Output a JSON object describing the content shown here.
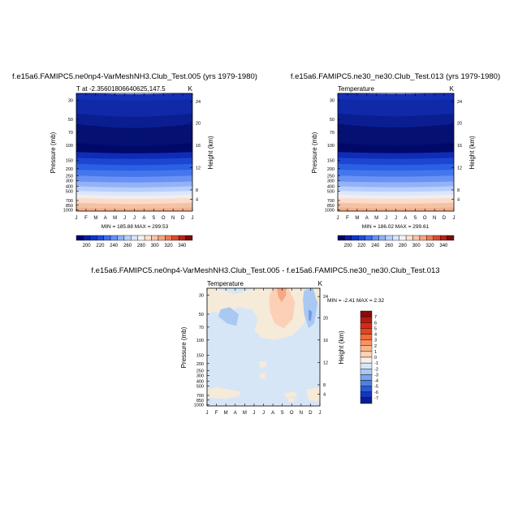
{
  "chart_data": [
    {
      "type": "heatmap",
      "title": "f.e15a6.FAMIPC5.ne0np4-VarMeshNH3.Club_Test.005 (yrs 1979-1980)",
      "subtitle_left": "T at -2.35601806640625,147.5",
      "subtitle_right": "K",
      "xlabel": "",
      "ylabel": "Pressure (mb)",
      "ylabel_right": "Height (km)",
      "x": [
        "J",
        "F",
        "M",
        "A",
        "M",
        "J",
        "J",
        "A",
        "S",
        "O",
        "N",
        "D",
        "J"
      ],
      "y_ticks": [
        "30",
        "50",
        "70",
        "100",
        "150",
        "200",
        "250",
        "300",
        "400",
        "500",
        "700",
        "850",
        "1000"
      ],
      "y_right_ticks": [
        "24",
        "20",
        "16",
        "12",
        "8",
        "4"
      ],
      "stats": "MIN = 185.88  MAX = 299.53",
      "legend_levels": [
        "200",
        "220",
        "240",
        "260",
        "280",
        "300",
        "320",
        "340"
      ],
      "contour_levels": [
        190,
        200,
        210,
        220,
        230,
        240,
        250,
        260,
        270,
        280,
        290
      ],
      "colorbar_colors": [
        "#00006b",
        "#0a1e9e",
        "#0f35c8",
        "#1a4ee0",
        "#3c6cf0",
        "#6690f7",
        "#8fb1fa",
        "#b7cffc",
        "#d8e6fd",
        "#f3f3f3",
        "#fde0d0",
        "#f9c3a7",
        "#f4a582",
        "#ec7a54",
        "#db4b2e",
        "#b8241a",
        "#7a0d0d"
      ]
    },
    {
      "type": "heatmap",
      "title": "f.e15a6.FAMIPC5.ne30_ne30.Club_Test.013 (yrs 1979-1980)",
      "subtitle_left": "Temperature",
      "subtitle_right": "K",
      "xlabel": "",
      "ylabel": "Pressure (mb)",
      "ylabel_right": "Height (km)",
      "x": [
        "J",
        "F",
        "M",
        "A",
        "M",
        "J",
        "J",
        "A",
        "S",
        "O",
        "N",
        "D",
        "J"
      ],
      "y_ticks": [
        "30",
        "50",
        "70",
        "100",
        "150",
        "200",
        "250",
        "300",
        "400",
        "500",
        "700",
        "850",
        "1000"
      ],
      "y_right_ticks": [
        "24",
        "20",
        "16",
        "12",
        "8",
        "4"
      ],
      "stats": "MIN = 186.02  MAX = 299.61",
      "legend_levels": [
        "200",
        "220",
        "240",
        "260",
        "280",
        "300",
        "320",
        "340"
      ],
      "contour_levels": [
        190,
        200,
        210,
        220,
        230,
        240,
        250,
        260,
        270,
        280,
        290
      ]
    },
    {
      "type": "heatmap",
      "title": "f.e15a6.FAMIPC5.ne0np4-VarMeshNH3.Club_Test.005 - f.e15a6.FAMIPC5.ne30_ne30.Club_Test.013",
      "subtitle_left": "Temperature",
      "subtitle_right": "K",
      "xlabel": "",
      "ylabel": "Pressure (mb)",
      "ylabel_right": "Height (km)",
      "x": [
        "J",
        "F",
        "M",
        "A",
        "M",
        "J",
        "J",
        "A",
        "S",
        "O",
        "N",
        "D",
        "J"
      ],
      "y_ticks": [
        "30",
        "50",
        "70",
        "100",
        "150",
        "200",
        "250",
        "300",
        "400",
        "500",
        "700",
        "850",
        "1000"
      ],
      "y_right_ticks": [
        "24",
        "20",
        "16",
        "12",
        "8",
        "4"
      ],
      "stats": "MIN =  -2.41  MAX =   2.32",
      "legend_levels": [
        "7",
        "6",
        "5",
        "4",
        "3",
        "2",
        "1",
        "0",
        "-1",
        "-2",
        "-3",
        "-4",
        "-5",
        "-6",
        "-7"
      ],
      "colorbar_colors": [
        "#8b0a0a",
        "#b51a12",
        "#d42b18",
        "#e6451f",
        "#f26b3a",
        "#f7935e",
        "#fab48a",
        "#fcd3b6",
        "#f6f0e8",
        "#d6e6f7",
        "#a9c8f2",
        "#7ba6ec",
        "#4f80e2",
        "#2a5ad4",
        "#1236bf",
        "#062093"
      ]
    }
  ]
}
